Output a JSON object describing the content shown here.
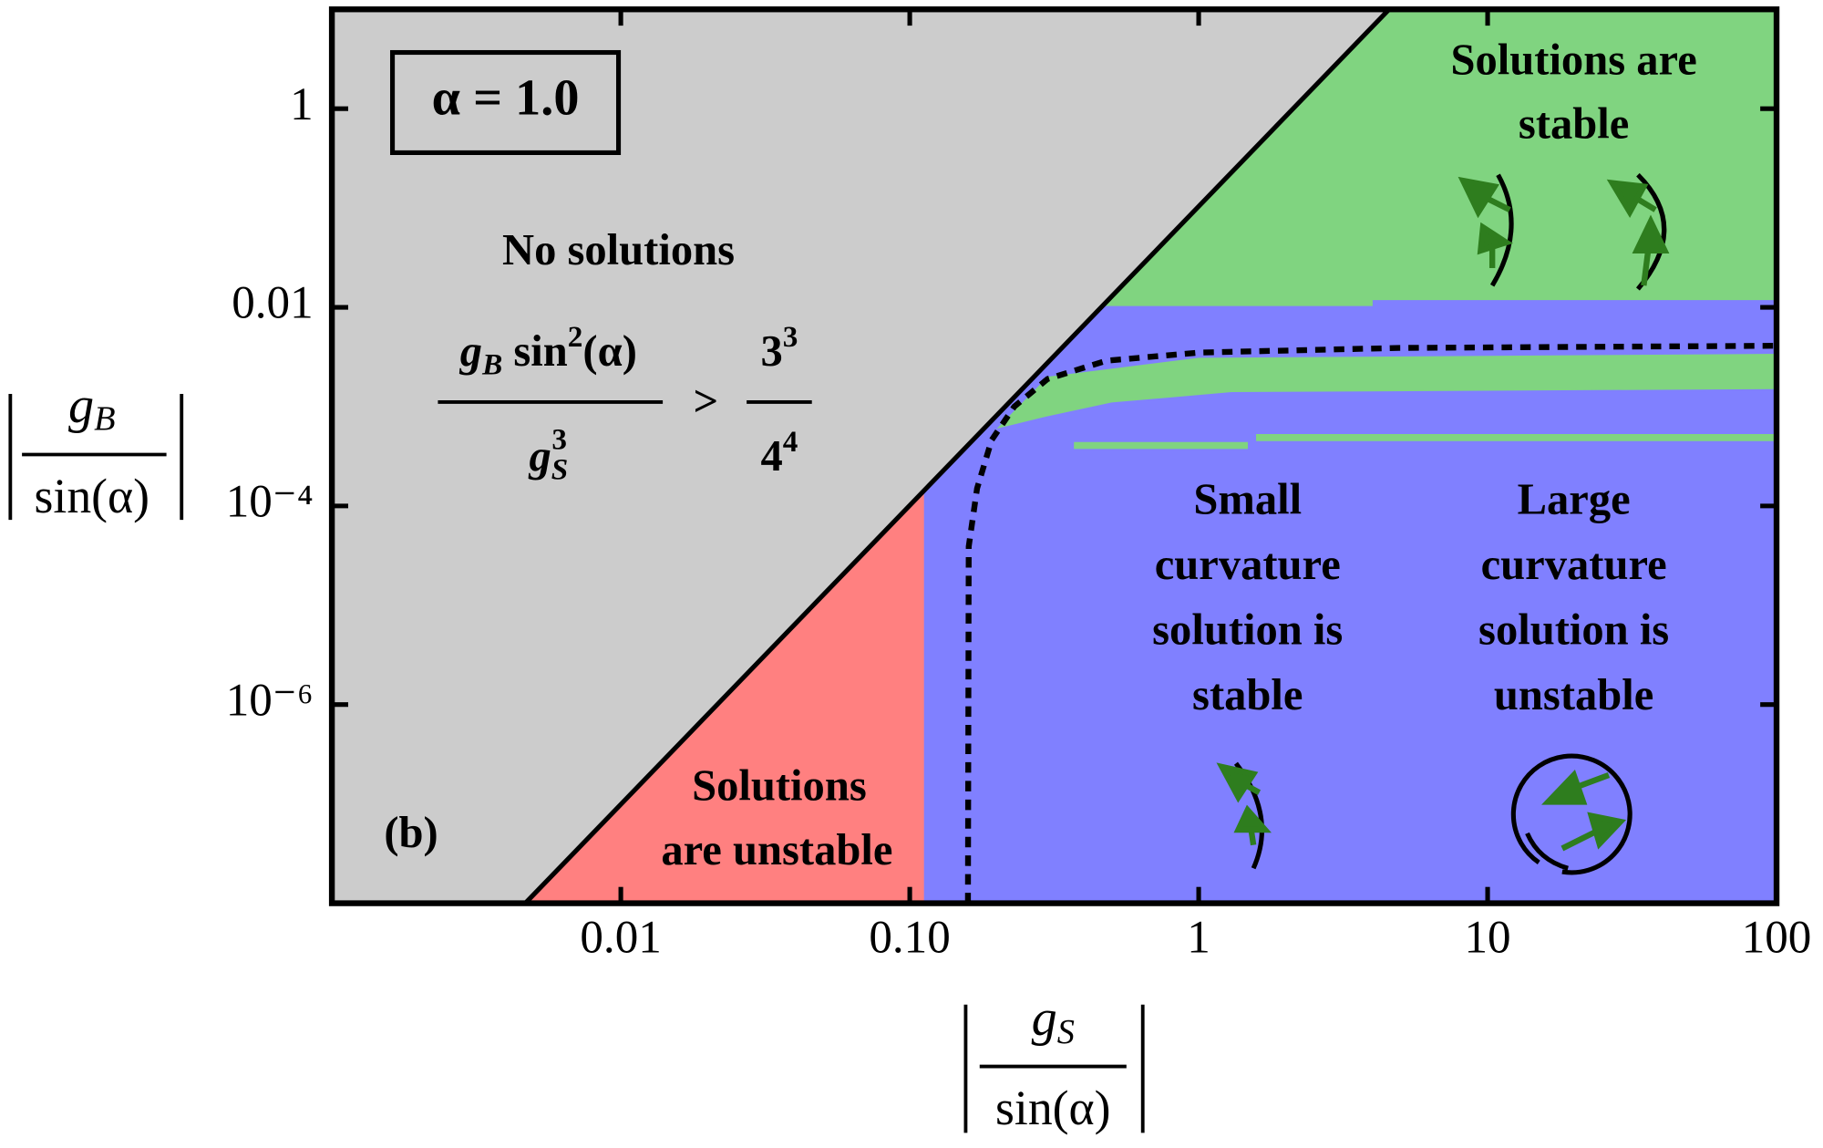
{
  "chart_data": {
    "type": "region",
    "log_x": true,
    "log_y": true,
    "xlim": [
      0.001,
      100
    ],
    "ylim": [
      1e-08,
      10
    ],
    "xticks": [
      0.01,
      {
        "value": 0.1,
        "label": "0.10"
      },
      1,
      10,
      100
    ],
    "yticks": [
      {
        "value": 1e-06,
        "label": "10⁻⁶"
      },
      {
        "value": 0.0001,
        "label": "10⁻⁴"
      },
      0.01,
      1
    ],
    "xlabel": {
      "numerator": [
        "g",
        "S"
      ],
      "denominator": "sin(α)"
    },
    "ylabel": {
      "numerator": [
        "g",
        "B"
      ],
      "denominator": "sin(α)"
    },
    "regions": [
      {
        "color": "#8080ff",
        "x": [
          0.001,
          100,
          100,
          0.001
        ],
        "y": [
          1e-08,
          1e-08,
          10,
          10
        ]
      },
      {
        "color": "#80d480",
        "x": [
          0.46,
          4.0,
          4.0,
          100,
          100,
          4.56
        ],
        "y": [
          0.0103,
          0.0103,
          0.0118,
          0.0118,
          10,
          10
        ]
      },
      {
        "color": "#80d480",
        "x": [
          0.2,
          0.3,
          1,
          100,
          100,
          1.3,
          0.5,
          0.3
        ],
        "y": [
          0.0006,
          0.002,
          0.0031,
          0.0034,
          0.0015,
          0.0014,
          0.0011,
          0.0008
        ]
      },
      {
        "color": "#80d480",
        "x": [
          0.37,
          1.48,
          1.48,
          0.37
        ],
        "y": [
          0.00044,
          0.00044,
          0.000375,
          0.000375
        ]
      },
      {
        "color": "#80d480",
        "x": [
          1.58,
          100,
          100,
          1.58
        ],
        "y": [
          0.00053,
          0.00053,
          0.00045,
          0.00045
        ]
      },
      {
        "color": "#ff8080",
        "x": [
          0.00467,
          0.112,
          0.112
        ],
        "y": [
          1e-08,
          1e-08,
          0.00015
        ]
      },
      {
        "color": "#cccccc",
        "x": [
          0.001,
          0.00467,
          4.56,
          0.001
        ],
        "y": [
          1e-08,
          1e-08,
          10,
          10
        ]
      }
    ],
    "series": [
      {
        "color": "#000000",
        "style": "solid",
        "x": [
          0.00467,
          4.56
        ],
        "y": [
          1e-08,
          10
        ]
      },
      {
        "color": "#000000",
        "style": "dashed",
        "x": [
          0.159,
          0.16,
          0.171,
          0.192,
          0.23,
          0.3,
          0.48,
          1,
          4.94,
          100
        ],
        "y": [
          1e-08,
          3.9e-05,
          0.00015,
          0.00046,
          0.001,
          0.0019,
          0.0029,
          0.0035,
          0.0039,
          0.0041
        ]
      }
    ],
    "parameter_box": "α = 1.0",
    "panel_label": "(b)",
    "condition": {
      "numerator": [
        "g",
        "B",
        " sin",
        "2",
        "(α)"
      ],
      "denominator": [
        "g",
        "S",
        "3"
      ],
      "relation": ">",
      "rhs_numerator": [
        "3",
        "3"
      ],
      "rhs_denominator": [
        "4",
        "4"
      ]
    },
    "labels": [
      [
        "No solutions"
      ],
      [
        "Solutions are",
        "stable"
      ],
      [
        "Small",
        "curvature",
        "solution is",
        "stable"
      ],
      [
        "Large",
        "curvature",
        "solution is",
        "unstable"
      ],
      [
        "Solutions",
        "are unstable"
      ]
    ]
  }
}
